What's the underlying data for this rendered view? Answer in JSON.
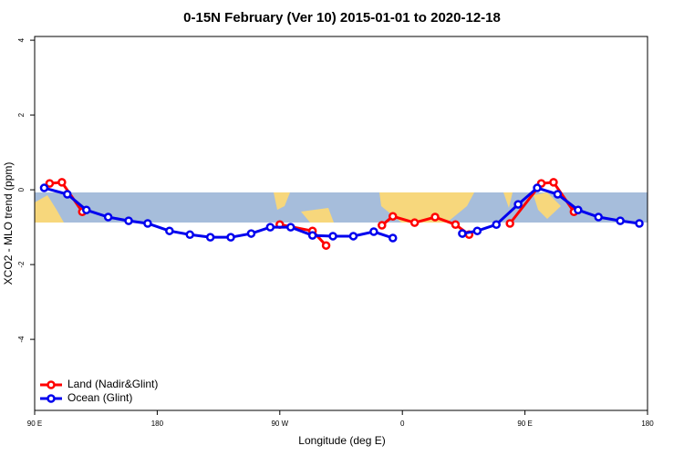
{
  "chart_data": {
    "type": "line",
    "title": "0-15N February (Ver 10)   2015-01-01 to 2020-12-18",
    "x_label": "Longitude (deg E)",
    "y_label": "XCO2 - MLO trend (ppm)",
    "xlim": [
      90,
      540
    ],
    "ylim": [
      -5.9,
      4.1
    ],
    "xticks": [
      {
        "value": 90,
        "label": "90 E"
      },
      180,
      {
        "value": 270,
        "label": "90 W"
      },
      {
        "value": 360,
        "label": "0"
      },
      {
        "value": 450,
        "label": "90 E"
      },
      {
        "value": 540,
        "label": "180"
      }
    ],
    "yticks": [
      -4,
      -2,
      0,
      2,
      4
    ],
    "legend": "bottom-left",
    "series": [
      {
        "name": "Land (Nadir&Glint)",
        "color": "#ff0000",
        "x": [
          101,
          110,
          125,
          200,
          270,
          294,
          304,
          330,
          345,
          353,
          369,
          384,
          399,
          409,
          425,
          439,
          462,
          471,
          486
        ],
        "values": [
          0.17,
          0.2,
          -0.59,
          null,
          -0.93,
          -1.1,
          -1.49,
          null,
          -0.95,
          -0.71,
          -0.88,
          -0.73,
          -0.93,
          -1.2,
          null,
          -0.9,
          0.17,
          0.2,
          -0.59
        ]
      },
      {
        "name": "Ocean (Glint)",
        "color": "#0000ee",
        "x": [
          97,
          114,
          128,
          144,
          159,
          173,
          189,
          204,
          219,
          234,
          249,
          263,
          278,
          294,
          309,
          324,
          339,
          353,
          378,
          404,
          415,
          429,
          445,
          459,
          474,
          489,
          504,
          520,
          534
        ],
        "values": [
          0.05,
          -0.12,
          -0.54,
          -0.73,
          -0.83,
          -0.9,
          -1.1,
          -1.2,
          -1.27,
          -1.27,
          -1.17,
          -1.0,
          -1.0,
          -1.22,
          -1.24,
          -1.24,
          -1.12,
          -1.29,
          null,
          -1.17,
          -1.1,
          -0.93,
          -0.39,
          0.05,
          -0.12,
          -0.54,
          -0.73,
          -0.83,
          -0.9
        ]
      }
    ]
  }
}
